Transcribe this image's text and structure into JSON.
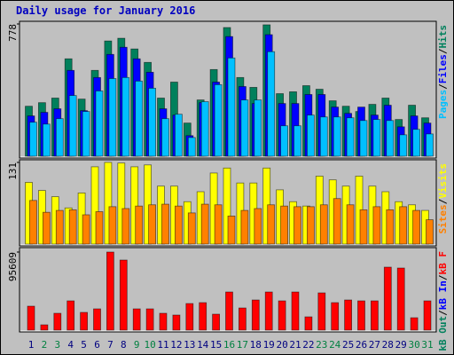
{
  "title": "Daily usage for January 2016",
  "legend_separator": "/",
  "chart_data": [
    {
      "type": "bar",
      "ylim": [
        0,
        778
      ],
      "yticks": [
        778
      ],
      "series": [
        {
          "name": "Hits",
          "color": "#00805c",
          "values": [
            294,
            315,
            342,
            573,
            336,
            505,
            678,
            694,
            631,
            552,
            342,
            436,
            195,
            331,
            510,
            757,
            463,
            405,
            773,
            368,
            379,
            415,
            394,
            326,
            294,
            263,
            305,
            342,
            216,
            300,
            226
          ]
        },
        {
          "name": "Files",
          "color": "#0000ff",
          "values": [
            237,
            258,
            279,
            505,
            268,
            463,
            599,
            641,
            573,
            494,
            279,
            242,
            121,
            315,
            436,
            704,
            410,
            310,
            715,
            310,
            310,
            363,
            363,
            289,
            252,
            289,
            242,
            300,
            173,
            237,
            195
          ]
        },
        {
          "name": "Pages",
          "color": "#00c0ff",
          "values": [
            200,
            189,
            221,
            357,
            263,
            384,
            457,
            463,
            442,
            400,
            221,
            247,
            110,
            321,
            421,
            578,
            331,
            331,
            615,
            179,
            179,
            242,
            231,
            231,
            226,
            210,
            216,
            210,
            126,
            158,
            131
          ]
        }
      ]
    },
    {
      "type": "bar",
      "ylim": [
        0,
        131
      ],
      "yticks": [
        131
      ],
      "series": [
        {
          "name": "Visits",
          "color": "#ffff00",
          "values": [
            99,
            86,
            76,
            58,
            82,
            124,
            131,
            130,
            124,
            127,
            93,
            93,
            68,
            84,
            114,
            122,
            98,
            98,
            122,
            87,
            68,
            61,
            109,
            103,
            93,
            109,
            93,
            84,
            68,
            63,
            54
          ]
        },
        {
          "name": "Sites",
          "color": "#ff8000",
          "values": [
            70,
            51,
            54,
            55,
            47,
            52,
            60,
            57,
            61,
            63,
            64,
            61,
            50,
            64,
            63,
            45,
            54,
            57,
            63,
            61,
            60,
            60,
            63,
            73,
            63,
            55,
            60,
            55,
            60,
            54,
            39
          ]
        }
      ]
    },
    {
      "type": "bar",
      "ylim": [
        0,
        95609
      ],
      "yticks": [
        95609
      ],
      "categories": [
        "1",
        "2",
        "3",
        "4",
        "5",
        "6",
        "7",
        "8",
        "9",
        "10",
        "11",
        "12",
        "13",
        "14",
        "15",
        "16",
        "17",
        "18",
        "19",
        "20",
        "21",
        "22",
        "23",
        "24",
        "25",
        "26",
        "27",
        "28",
        "29",
        "30",
        "31"
      ],
      "category_colors": [
        "#000080",
        "#008040",
        "#008040",
        "#000080",
        "#000080",
        "#000080",
        "#000080",
        "#000080",
        "#008040",
        "#008040",
        "#000080",
        "#000080",
        "#000080",
        "#000080",
        "#000080",
        "#008040",
        "#008040",
        "#000080",
        "#000080",
        "#000080",
        "#000080",
        "#000080",
        "#008040",
        "#008040",
        "#000080",
        "#000080",
        "#000080",
        "#000080",
        "#000080",
        "#008040",
        "#008040"
      ],
      "series": [
        {
          "name": "kB F",
          "color": "#ff0000",
          "values": [
            29336,
            6519,
            20644,
            35855,
            21730,
            26076,
            95609,
            85834,
            26076,
            26076,
            20644,
            18471,
            32595,
            33682,
            19557,
            46720,
            27163,
            36941,
            46720,
            35855,
            46720,
            16298,
            45633,
            33682,
            36941,
            35855,
            35855,
            77142,
            76055,
            15211,
            35855
          ]
        },
        {
          "name": "kB In",
          "color": "#0000ff"
        },
        {
          "name": "kB Out",
          "color": "#00805c"
        }
      ]
    }
  ]
}
